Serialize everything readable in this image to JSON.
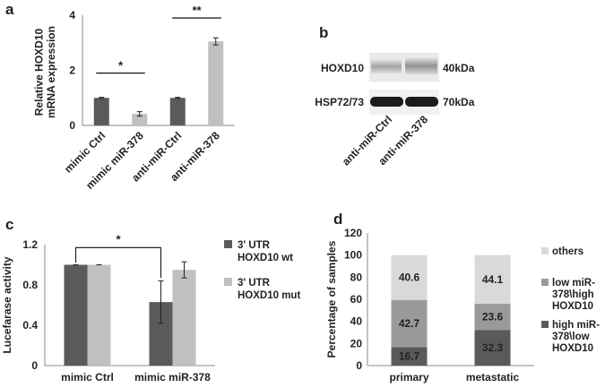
{
  "panels": {
    "a": "a",
    "b": "b",
    "c": "c",
    "d": "d"
  },
  "colors": {
    "dark": "#5a5a5a",
    "light": "#c0c0c0",
    "mid": "#9a9a9a",
    "lightest": "#d9d9d9",
    "axis": "#8a8a8a"
  },
  "blot": {
    "bands": [
      "HOXD10",
      "HSP72/73"
    ],
    "sizes": [
      "40kDa",
      "70kDa"
    ],
    "lanes": [
      "anti-miR-Ctrl",
      "anti-miR-378"
    ]
  },
  "chart_data": [
    {
      "panel": "a",
      "type": "bar",
      "ylabel": "Relative HOXD10 mRNA expression",
      "ylim": [
        0,
        4
      ],
      "yticks": [
        "0",
        "2",
        "4"
      ],
      "categories": [
        "mimic Ctrl",
        "mimic miR-378",
        "anti-miR-Ctrl",
        "anti-miR-378"
      ],
      "values": [
        1.0,
        0.42,
        1.0,
        3.05
      ],
      "errors": [
        0.02,
        0.08,
        0.02,
        0.13
      ],
      "bar_colors": [
        "dark",
        "light",
        "dark",
        "light"
      ],
      "significance": [
        "*",
        "**"
      ]
    },
    {
      "panel": "c",
      "type": "bar",
      "ylabel": "Lucefarase activity",
      "ylim": [
        0,
        1.2
      ],
      "yticks": [
        "0",
        "0.4",
        "0.8",
        "1.2"
      ],
      "categories": [
        "mimic Ctrl",
        "mimic miR-378"
      ],
      "series": [
        {
          "name": "3' UTR HOXD10 wt",
          "legend_lines": [
            "3' UTR",
            "HOXD10 wt"
          ],
          "values": [
            1.0,
            0.63
          ],
          "errors": [
            0.0,
            0.21
          ]
        },
        {
          "name": "3' UTR HOXD10 mut",
          "legend_lines": [
            "3' UTR",
            "HOXD10 mut"
          ],
          "values": [
            1.0,
            0.95
          ],
          "errors": [
            0.0,
            0.08
          ]
        }
      ],
      "significance": [
        "*"
      ]
    },
    {
      "panel": "d",
      "type": "bar",
      "stacked": true,
      "ylabel": "Percentage of samples",
      "ylim": [
        0,
        120
      ],
      "yticks": [
        "0",
        "20",
        "40",
        "60",
        "80",
        "100",
        "120"
      ],
      "categories": [
        "primary",
        "metastatic"
      ],
      "series": [
        {
          "name": "high miR-378\\low HOXD10",
          "legend_lines": [
            "high miR-",
            "378\\low",
            "HOXD10"
          ],
          "values": [
            16.7,
            32.3
          ],
          "labels": [
            "16.7",
            "32.3"
          ]
        },
        {
          "name": "low miR-378\\high HOXD10",
          "legend_lines": [
            "low miR-",
            "378\\high",
            "HOXD10"
          ],
          "values": [
            42.7,
            23.6
          ],
          "labels": [
            "42.7",
            "23.6"
          ]
        },
        {
          "name": "others",
          "legend_lines": [
            "others"
          ],
          "values": [
            40.6,
            44.1
          ],
          "labels": [
            "40.6",
            "44.1"
          ]
        }
      ]
    }
  ]
}
